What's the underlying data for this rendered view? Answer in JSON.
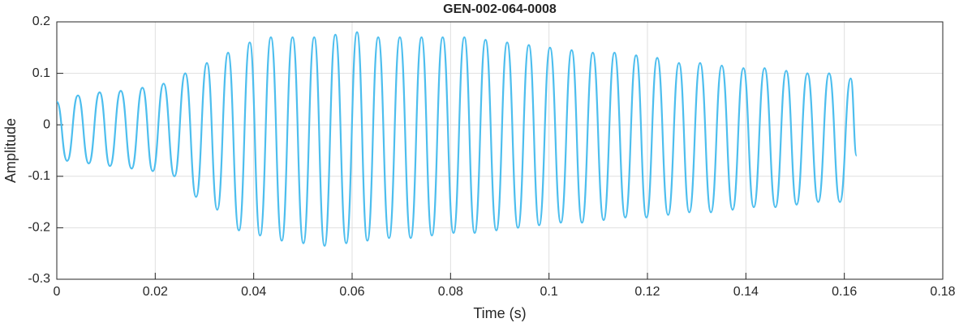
{
  "chart_data": {
    "type": "line",
    "title": "GEN-002-064-0008",
    "xlabel": "Time (s)",
    "ylabel": "Amplitude",
    "x": [
      0,
      0.0021,
      0.0043,
      0.0065,
      0.0087,
      0.0108,
      0.013,
      0.0152,
      0.0174,
      0.0195,
      0.0217,
      0.0239,
      0.0261,
      0.0283,
      0.0305,
      0.0326,
      0.0348,
      0.037,
      0.0392,
      0.0413,
      0.0435,
      0.0457,
      0.0479,
      0.0501,
      0.0523,
      0.0544,
      0.0566,
      0.0588,
      0.061,
      0.0631,
      0.0653,
      0.0675,
      0.0697,
      0.0719,
      0.0741,
      0.0762,
      0.0784,
      0.0806,
      0.0828,
      0.0849,
      0.0871,
      0.0893,
      0.0915,
      0.0937,
      0.0959,
      0.098,
      0.1002,
      0.1024,
      0.1046,
      0.1067,
      0.1089,
      0.1111,
      0.1133,
      0.1155,
      0.1177,
      0.1198,
      0.122,
      0.1242,
      0.1264,
      0.1285,
      0.1307,
      0.1329,
      0.1351,
      0.1373,
      0.1395,
      0.1416,
      0.1438,
      0.146,
      0.1482,
      0.1503,
      0.1525,
      0.1547,
      0.1569,
      0.1591,
      0.1613,
      0.1625
    ],
    "series": [
      {
        "name": "Amplitude",
        "color": "#4dbeee",
        "values": [
          0.045,
          -0.07,
          0.057,
          -0.075,
          0.063,
          -0.08,
          0.066,
          -0.085,
          0.072,
          -0.09,
          0.08,
          -0.1,
          0.1,
          -0.14,
          0.12,
          -0.165,
          0.14,
          -0.205,
          0.16,
          -0.215,
          0.17,
          -0.225,
          0.17,
          -0.23,
          0.17,
          -0.235,
          0.175,
          -0.23,
          0.18,
          -0.225,
          0.17,
          -0.22,
          0.17,
          -0.22,
          0.17,
          -0.215,
          0.17,
          -0.21,
          0.17,
          -0.21,
          0.165,
          -0.205,
          0.16,
          -0.2,
          0.155,
          -0.195,
          0.15,
          -0.19,
          0.145,
          -0.19,
          0.14,
          -0.185,
          0.14,
          -0.18,
          0.135,
          -0.18,
          0.13,
          -0.175,
          0.12,
          -0.17,
          0.12,
          -0.17,
          0.115,
          -0.165,
          0.11,
          -0.16,
          0.11,
          -0.16,
          0.105,
          -0.155,
          0.1,
          -0.15,
          0.1,
          -0.15,
          0.09,
          -0.06
        ]
      }
    ],
    "xlim": [
      0,
      0.18
    ],
    "xticks": [
      0,
      0.02,
      0.04,
      0.06,
      0.08,
      0.1,
      0.12,
      0.14,
      0.16,
      0.18
    ],
    "ylim": [
      -0.3,
      0.2
    ],
    "yticks": [
      -0.3,
      -0.2,
      -0.1,
      0,
      0.1,
      0.2
    ],
    "grid": true
  }
}
